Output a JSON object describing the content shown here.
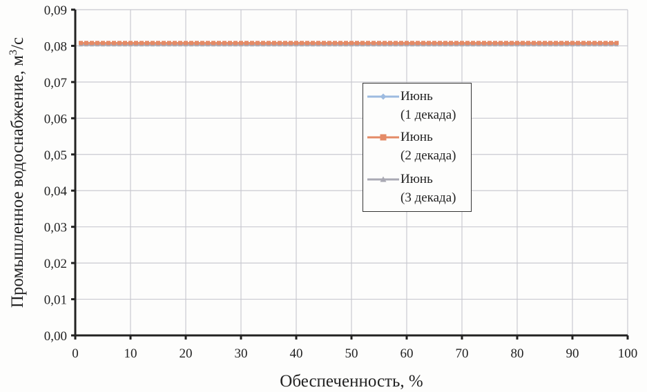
{
  "chart_data": {
    "type": "line",
    "title": "",
    "xlabel": "Обеспеченность, %",
    "ylabel": "Промышленное водоснабжение, м³/с",
    "ylabel_parts": {
      "main": "Промышленное водоснабжение, м",
      "sup": "3",
      "tail": "/с"
    },
    "xlim": [
      0,
      100
    ],
    "ylim": [
      0,
      0.09
    ],
    "x_ticks": [
      "0",
      "10",
      "20",
      "30",
      "40",
      "50",
      "60",
      "70",
      "80",
      "90",
      "100"
    ],
    "y_ticks": [
      "0,00",
      "0,01",
      "0,02",
      "0,03",
      "0,04",
      "0,05",
      "0,06",
      "0,07",
      "0,08",
      "0,09"
    ],
    "grid": true,
    "legend_position": "inside-right-center",
    "x": {
      "start": 1,
      "end": 98,
      "step": 1
    },
    "series": [
      {
        "name": "Июнь (1 декада)",
        "line1": "Июнь",
        "line2": "(1 декада)",
        "color": "#9dbbe0",
        "marker": "diamond",
        "value": 0.0805
      },
      {
        "name": "Июнь (2 декада)",
        "line1": "Июнь",
        "line2": "(2 декада)",
        "color": "#e48a66",
        "marker": "square",
        "value": 0.0808
      },
      {
        "name": "Июнь (3 декада)",
        "line1": "Июнь",
        "line2": "(3 декада)",
        "color": "#a9a9b3",
        "marker": "triangle",
        "value": 0.0803
      }
    ]
  }
}
